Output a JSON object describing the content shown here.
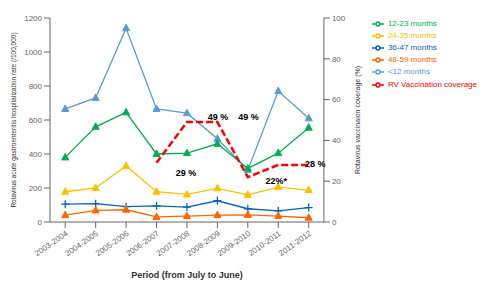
{
  "chart_data": {
    "type": "line",
    "categories": [
      "2003-2004",
      "2004-2005",
      "2005-2006",
      "2006-2007",
      "2007-2008",
      "2008-2009",
      "2009-2010",
      "2010-2011",
      "2011-2012"
    ],
    "xlabel": "Period (from July to June)",
    "ylabel": "Rotavirus acute gastroenteritis hospitalization rate (/100,000)",
    "y2label": "Rotavirus vaccinaion coverage (%)",
    "ylim": [
      0,
      1200
    ],
    "yticks": [
      0,
      200,
      400,
      600,
      800,
      1000,
      1200
    ],
    "y2lim": [
      0,
      100
    ],
    "y2ticks": [
      0,
      20,
      40,
      60,
      80,
      100
    ],
    "grid": false,
    "legend": "upper right",
    "series": [
      {
        "name": "<12 months",
        "color": "#5B9BD5",
        "marker": "triangle",
        "values": [
          665,
          730,
          1140,
          665,
          640,
          490,
          305,
          770,
          610
        ]
      },
      {
        "name": "12-23 months",
        "color": "#00B050",
        "marker": "triangle",
        "values": [
          380,
          560,
          645,
          400,
          405,
          460,
          315,
          405,
          555
        ]
      },
      {
        "name": "24-35 months",
        "color": "#FFC000",
        "marker": "triangle",
        "values": [
          178,
          200,
          330,
          178,
          162,
          198,
          160,
          205,
          188
        ]
      },
      {
        "name": "36-47 months",
        "color": "#0563C1",
        "marker": "plus",
        "values": [
          105,
          108,
          90,
          95,
          88,
          125,
          78,
          65,
          85
        ]
      },
      {
        "name": "48-59 months",
        "color": "#FF6600",
        "marker": "triangle",
        "values": [
          40,
          68,
          72,
          30,
          35,
          40,
          42,
          35,
          25
        ]
      },
      {
        "name": "RV Vaccination coverage",
        "color": "#FF0000",
        "line_style": "dashed",
        "axis": "y2",
        "values": [
          null,
          null,
          null,
          29,
          49,
          49,
          22,
          28,
          28
        ]
      }
    ],
    "annotations": [
      {
        "text": "29 %",
        "x": 3.6,
        "y": 290
      },
      {
        "text": "49 %",
        "x": 4.65,
        "y": 620
      },
      {
        "text": "49 %",
        "x": 5.65,
        "y": 620
      },
      {
        "text": "22%*",
        "x": 6.55,
        "y": 245
      },
      {
        "text": "28 %",
        "x": 7.85,
        "y": 340
      }
    ]
  }
}
